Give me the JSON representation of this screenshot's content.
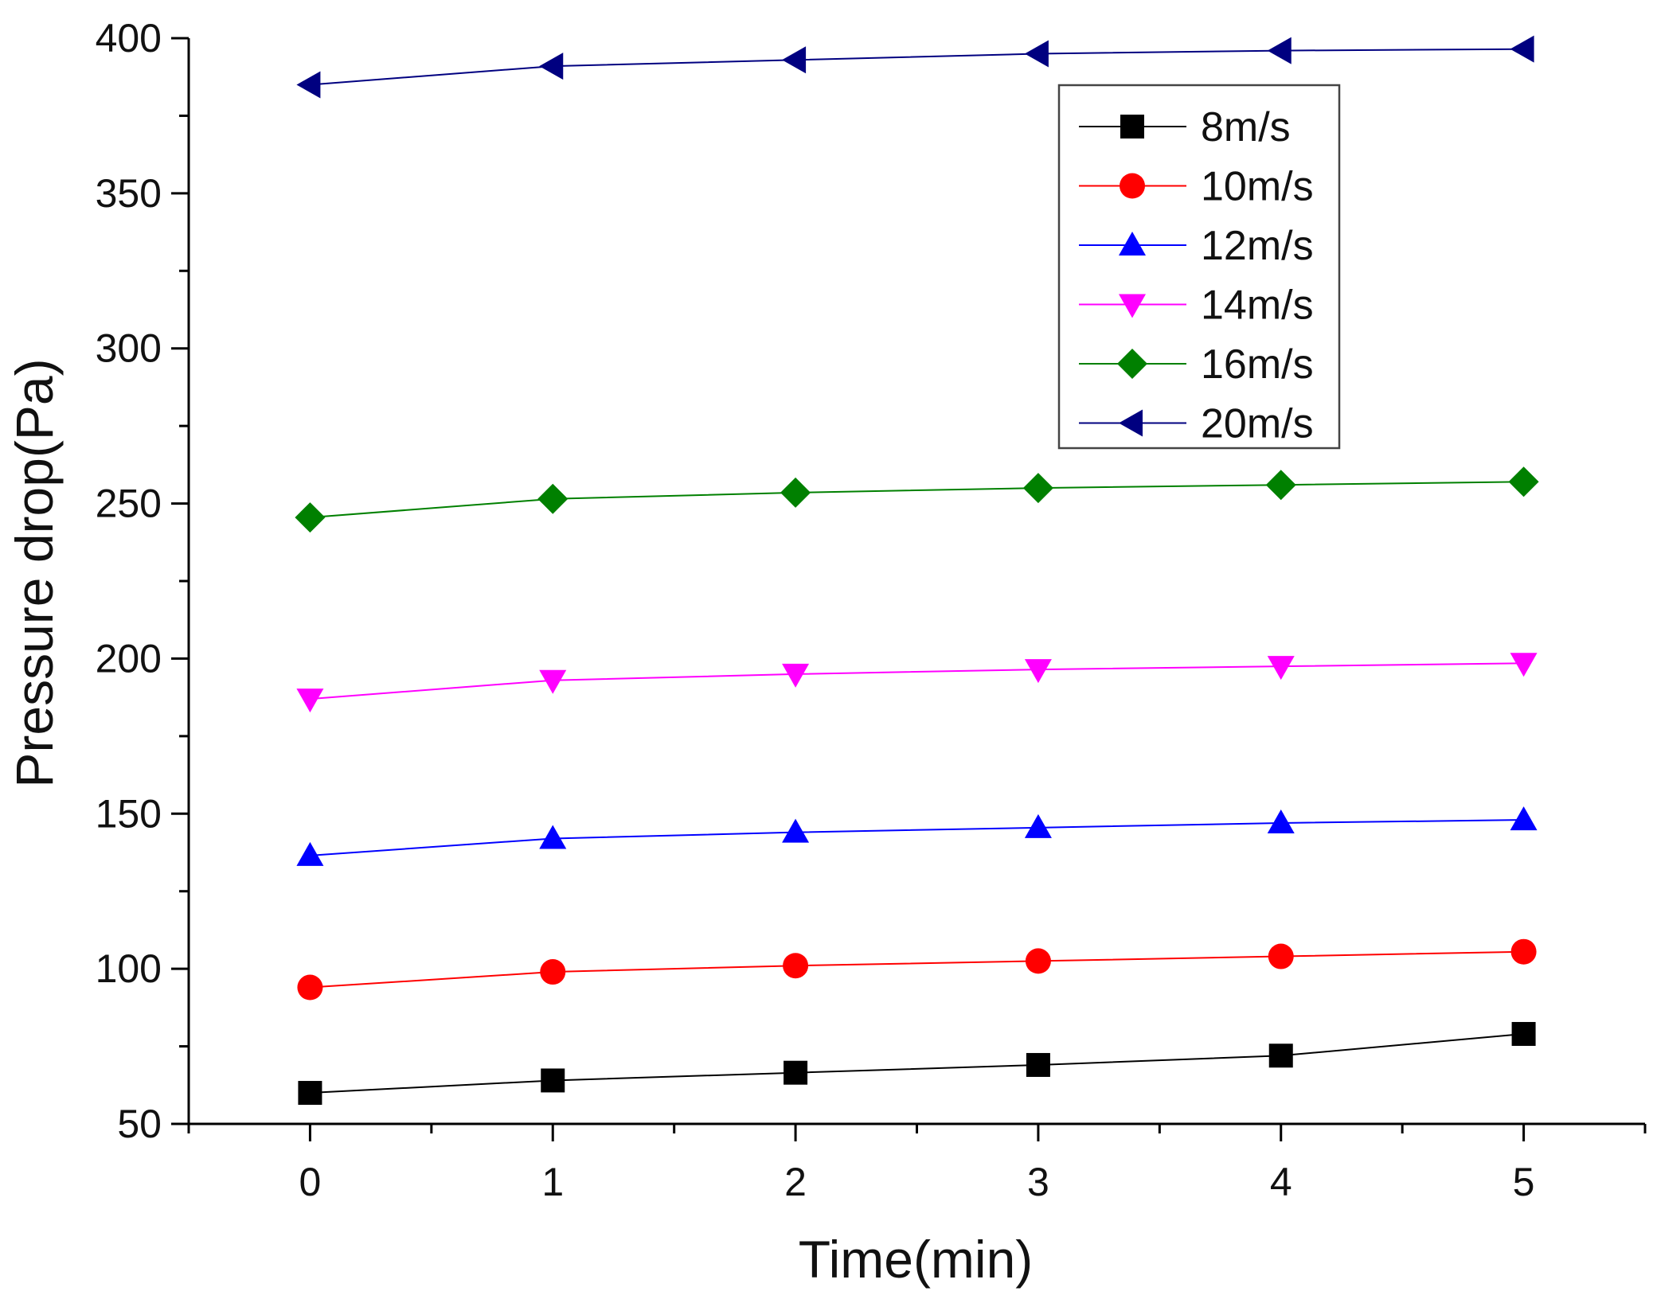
{
  "chart_data": {
    "type": "line",
    "title": "",
    "xlabel": "Time(min)",
    "ylabel": "Pressure drop(Pa)",
    "xlim": [
      -0.5,
      5.5
    ],
    "ylim": [
      50,
      400
    ],
    "x": [
      0,
      1,
      2,
      3,
      4,
      5
    ],
    "xticks": [
      0,
      1,
      2,
      3,
      4,
      5
    ],
    "xtick_labels": [
      "0",
      "1",
      "2",
      "3",
      "4",
      "5"
    ],
    "yticks": [
      50,
      100,
      150,
      200,
      250,
      300,
      350,
      400
    ],
    "ytick_labels": [
      "50",
      "100",
      "150",
      "200",
      "250",
      "300",
      "350",
      "400"
    ],
    "grid": false,
    "legend_position": "top-right",
    "series": [
      {
        "name": "8m/s",
        "color": "#000000",
        "marker": "square",
        "values": [
          60,
          64,
          66.5,
          69,
          72,
          79
        ]
      },
      {
        "name": "10m/s",
        "color": "#ff0000",
        "marker": "circle",
        "values": [
          94,
          99,
          101,
          102.5,
          104,
          105.5
        ]
      },
      {
        "name": "12m/s",
        "color": "#0000ff",
        "marker": "triangle-up",
        "values": [
          136.5,
          142,
          144,
          145.5,
          147,
          148
        ]
      },
      {
        "name": "14m/s",
        "color": "#ff00ff",
        "marker": "triangle-down",
        "values": [
          187,
          193,
          195,
          196.5,
          197.5,
          198.5
        ]
      },
      {
        "name": "16m/s",
        "color": "#008000",
        "marker": "diamond",
        "values": [
          245.5,
          251.5,
          253.5,
          255,
          256,
          257
        ]
      },
      {
        "name": "20m/s",
        "color": "#000080",
        "marker": "triangle-left",
        "values": [
          385,
          391,
          393,
          395,
          396,
          396.5
        ]
      }
    ]
  }
}
